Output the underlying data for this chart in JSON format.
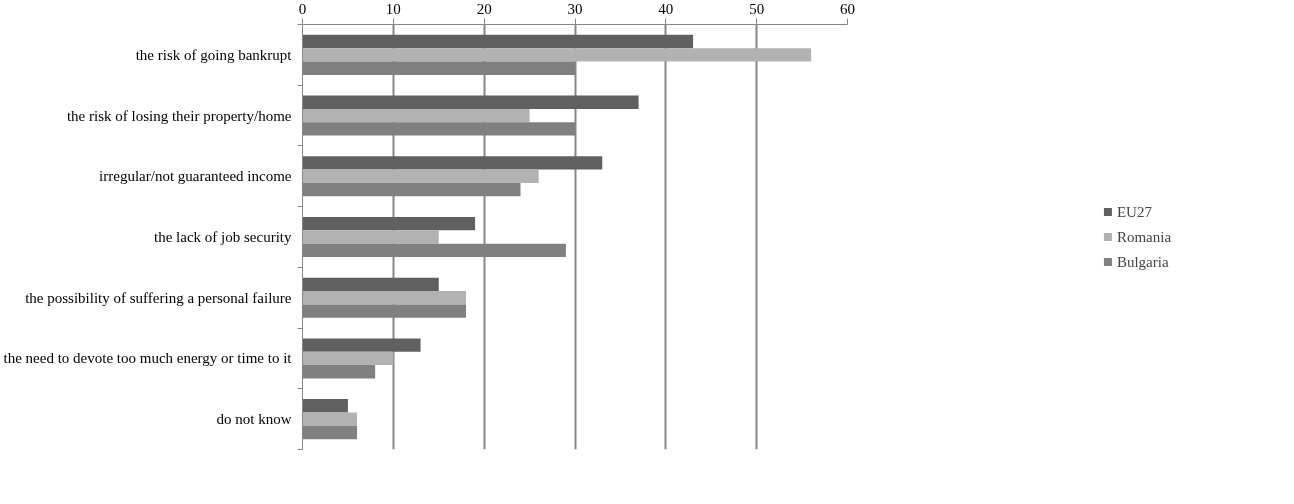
{
  "chart_data": {
    "type": "bar",
    "orientation": "horizontal",
    "categories": [
      "the risk of going bankrupt",
      "the risk of losing their property/home",
      "irregular/not guaranteed income",
      "the lack of job security",
      "the possibility of suffering a personal failure",
      "the need to devote too much energy or time to it",
      "do not know"
    ],
    "series": [
      {
        "name": "EU27",
        "color": "#606060",
        "values": [
          43,
          37,
          33,
          19,
          15,
          13,
          5
        ]
      },
      {
        "name": "Romania",
        "color": "#b2b2b2",
        "values": [
          56,
          25,
          26,
          15,
          18,
          10,
          6
        ]
      },
      {
        "name": "Bulgaria",
        "color": "#808080",
        "values": [
          30,
          30,
          24,
          29,
          18,
          8,
          6
        ]
      }
    ],
    "xlim": [
      0,
      60
    ],
    "xticks": [
      0,
      10,
      20,
      30,
      40,
      50,
      60
    ],
    "grid": "x",
    "legend": "right"
  }
}
